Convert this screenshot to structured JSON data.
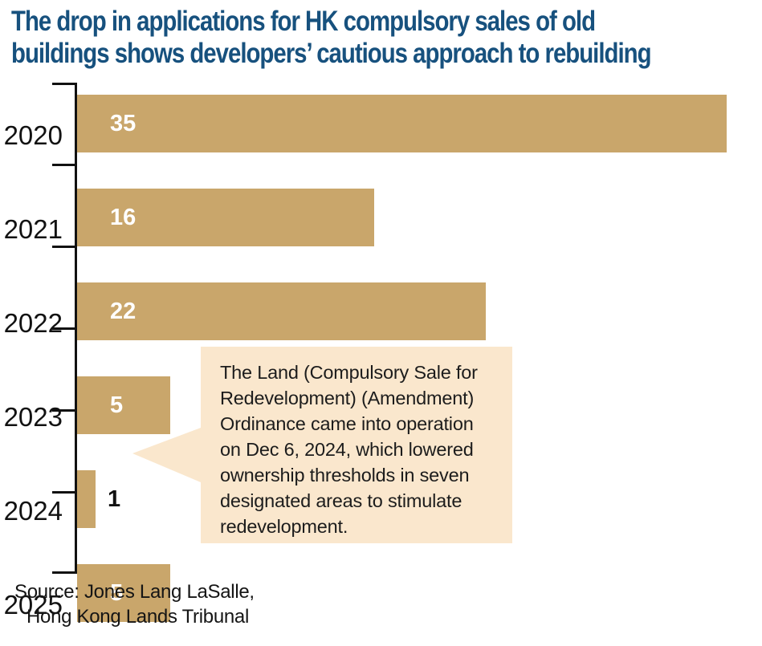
{
  "chart_data": {
    "type": "bar",
    "orientation": "horizontal",
    "title": "The drop in applications for HK compulsory sales of old\nbuildings shows developers’ cautious approach to rebuilding",
    "categories": [
      "2020",
      "2021",
      "2022",
      "2023",
      "2024",
      "2025"
    ],
    "values": [
      35,
      16,
      22,
      5,
      1,
      5
    ],
    "xlim": [
      0,
      35
    ],
    "xlabel": "",
    "ylabel": "",
    "grid": false,
    "legend": false,
    "value_labels": "shown at bar start; outside bar when bar too short (2024)",
    "annotation": "The Land (Compulsory Sale for\nRedevelopment) (Amendment)\nOrdinance came into operation\non Dec 6, 2024, which lowered\nownership thresholds in seven\ndesignated areas to stimulate\nredevelopment.",
    "annotation_target_category": "2024",
    "source_line1": "Source: Jones Lang LaSalle,",
    "source_line2": "Hong Kong Lands Tribunal"
  },
  "colors": {
    "bar": "#C9A66B",
    "title": "#17517E",
    "annotation_bg": "#FAE7CD",
    "axis": "#111111",
    "value_label_inside": "#FFFFFF",
    "value_label_outside": "#111111"
  }
}
